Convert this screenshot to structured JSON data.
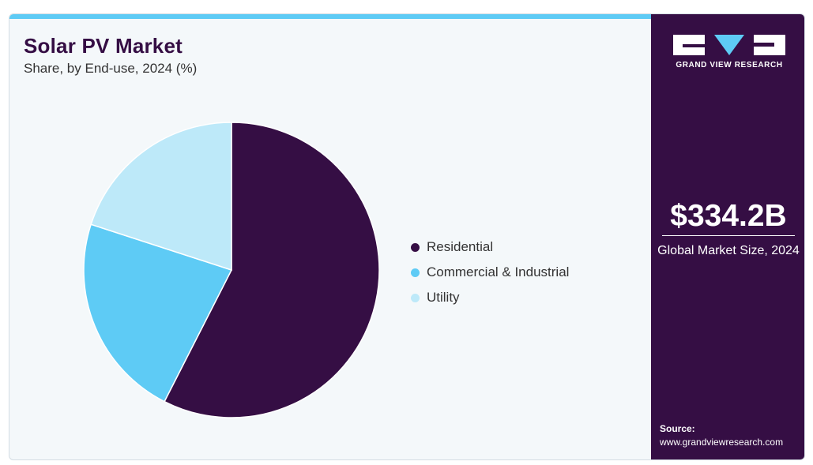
{
  "chart_data": {
    "type": "pie",
    "title": "Solar PV Market",
    "subtitle": "Share, by End-use, 2024 (%)",
    "categories": [
      "Residential",
      "Commercial & Industrial",
      "Utility"
    ],
    "values": [
      57.5,
      22.5,
      20.0
    ],
    "colors": [
      "#350e44",
      "#5ecbf5",
      "#bde9f9"
    ],
    "start_angle": "12 o'clock",
    "direction": "clockwise",
    "legend_position": "right"
  },
  "summary": {
    "market_size": "$334.2B",
    "market_size_label": "Global Market Size, 2024"
  },
  "brand": {
    "name": "GRAND VIEW RESEARCH",
    "logo_icon": "gvr-logo-icon"
  },
  "source": {
    "label": "Source:",
    "url": "www.grandviewresearch.com"
  }
}
